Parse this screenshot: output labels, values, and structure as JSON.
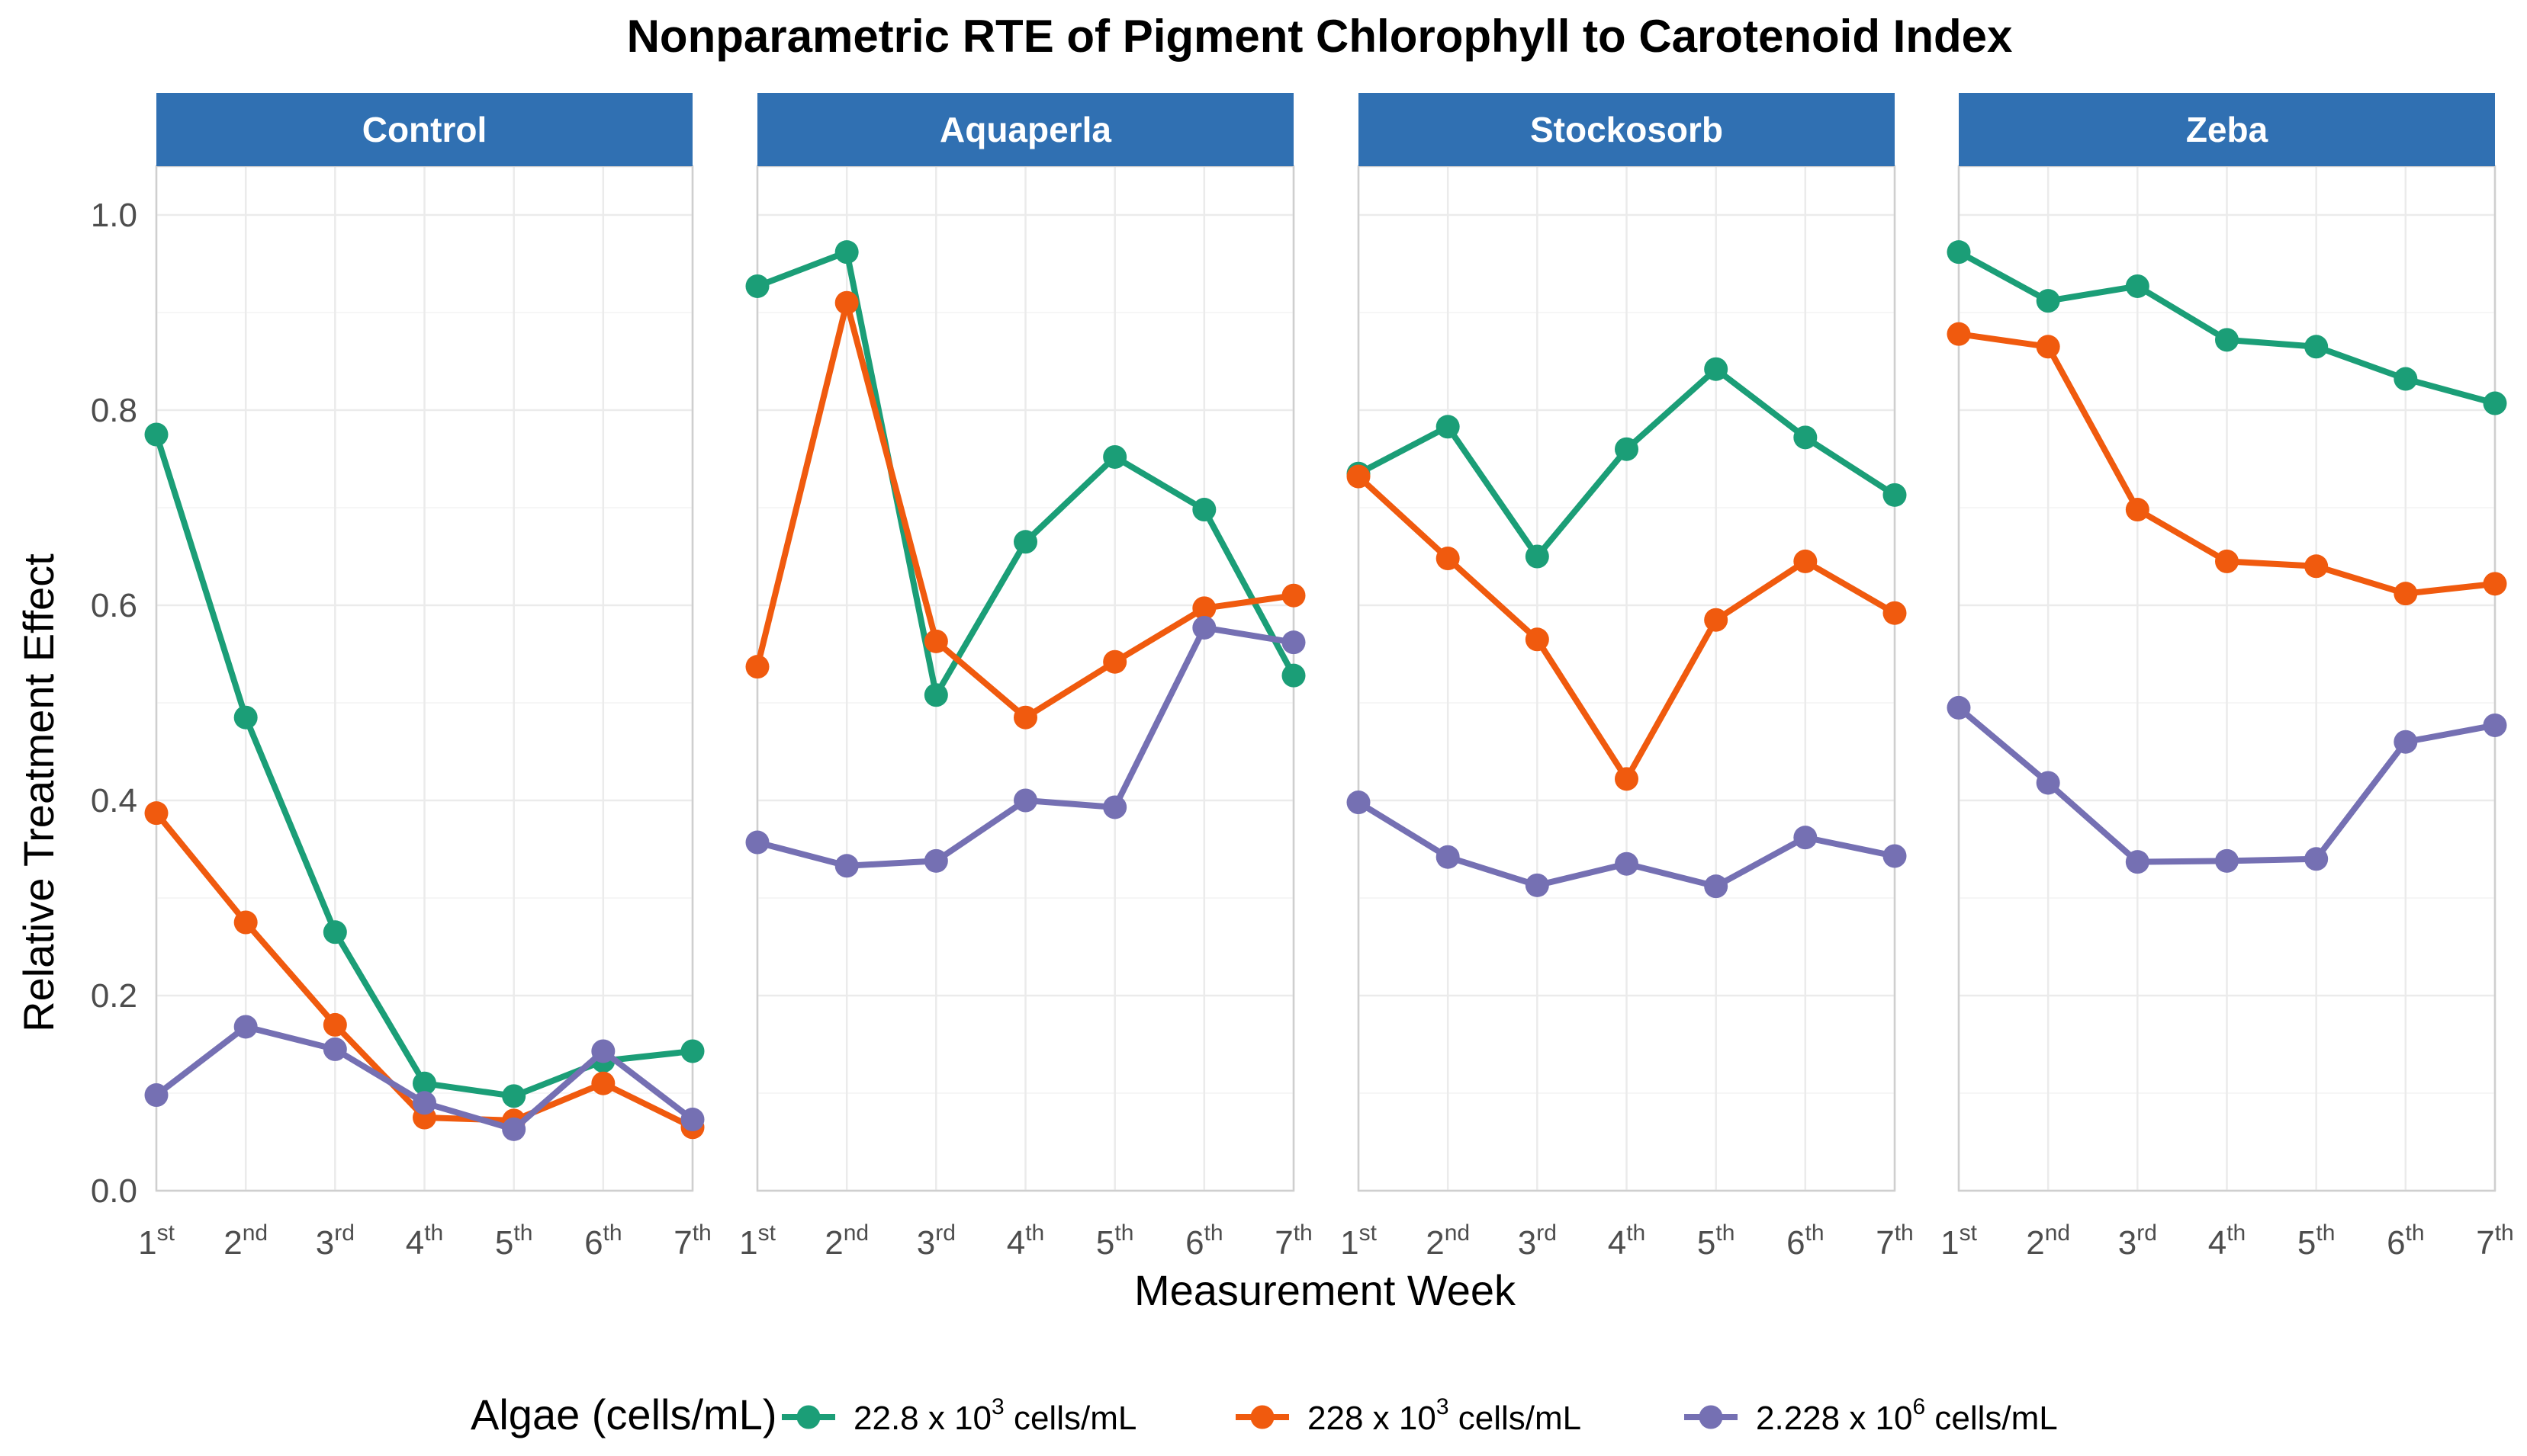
{
  "chart_data": {
    "type": "line",
    "title": "Nonparametric RTE of Pigment Chlorophyll to Carotenoid Index",
    "xlabel": "Measurement Week",
    "ylabel": "Relative Treatment Effect",
    "ylim": [
      0,
      1.05
    ],
    "yticks": [
      "0.0",
      "0.2",
      "0.4",
      "0.6",
      "0.8",
      "1.0"
    ],
    "xticks": [
      {
        "num": "1",
        "sup": "st"
      },
      {
        "num": "2",
        "sup": "nd"
      },
      {
        "num": "3",
        "sup": "rd"
      },
      {
        "num": "4",
        "sup": "th"
      },
      {
        "num": "5",
        "sup": "th"
      },
      {
        "num": "6",
        "sup": "th"
      },
      {
        "num": "7",
        "sup": "th"
      }
    ],
    "legend": {
      "title": "Algae (cells/mL)",
      "position": "bottom",
      "entries": [
        {
          "pre": "22.8 x 10",
          "sup": "3",
          "post": " cells/mL",
          "color": "#1b9e77"
        },
        {
          "pre": "228 x 10",
          "sup": "3",
          "post": " cells/mL",
          "color": "#f05a0e"
        },
        {
          "pre": "2.228 x 10",
          "sup": "6",
          "post": " cells/mL",
          "color": "#7570b3"
        }
      ]
    },
    "panels": [
      {
        "label": "Control",
        "series": [
          {
            "name": "22.8 x 10^3 cells/mL",
            "values": [
              0.775,
              0.485,
              0.265,
              0.11,
              0.097,
              0.133,
              0.143
            ]
          },
          {
            "name": "228 x 10^3 cells/mL",
            "values": [
              0.387,
              0.275,
              0.17,
              0.075,
              0.072,
              0.11,
              0.065
            ]
          },
          {
            "name": "2.228 x 10^6 cells/mL",
            "values": [
              0.098,
              0.168,
              0.145,
              0.09,
              0.063,
              0.143,
              0.073
            ]
          }
        ]
      },
      {
        "label": "Aquaperla",
        "series": [
          {
            "name": "22.8 x 10^3 cells/mL",
            "values": [
              0.927,
              0.962,
              0.508,
              0.665,
              0.752,
              0.698,
              0.528
            ]
          },
          {
            "name": "228 x 10^3 cells/mL",
            "values": [
              0.537,
              0.91,
              0.563,
              0.485,
              0.542,
              0.597,
              0.61
            ]
          },
          {
            "name": "2.228 x 10^6 cells/mL",
            "values": [
              0.357,
              0.333,
              0.338,
              0.4,
              0.393,
              0.577,
              0.562
            ]
          }
        ]
      },
      {
        "label": "Stockosorb",
        "series": [
          {
            "name": "22.8 x 10^3 cells/mL",
            "values": [
              0.735,
              0.783,
              0.65,
              0.76,
              0.842,
              0.772,
              0.713
            ]
          },
          {
            "name": "228 x 10^3 cells/mL",
            "values": [
              0.732,
              0.648,
              0.565,
              0.422,
              0.585,
              0.645,
              0.592
            ]
          },
          {
            "name": "2.228 x 10^6 cells/mL",
            "values": [
              0.398,
              0.342,
              0.313,
              0.335,
              0.312,
              0.362,
              0.343
            ]
          }
        ]
      },
      {
        "label": "Zeba",
        "series": [
          {
            "name": "22.8 x 10^3 cells/mL",
            "values": [
              0.962,
              0.912,
              0.927,
              0.872,
              0.865,
              0.832,
              0.807
            ]
          },
          {
            "name": "228 x 10^3 cells/mL",
            "values": [
              0.878,
              0.865,
              0.698,
              0.645,
              0.64,
              0.612,
              0.622
            ]
          },
          {
            "name": "2.228 x 10^6 cells/mL",
            "values": [
              0.495,
              0.418,
              0.337,
              0.338,
              0.34,
              0.46,
              0.477
            ]
          }
        ]
      }
    ]
  }
}
